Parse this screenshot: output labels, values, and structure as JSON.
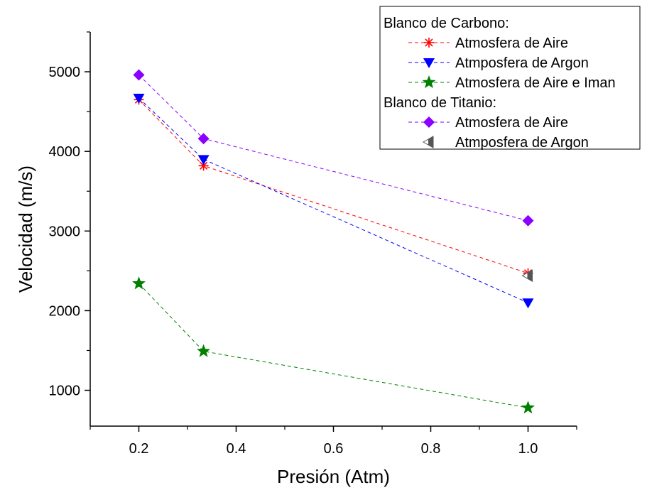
{
  "chart_data": {
    "type": "line",
    "xlabel": "Presión (Atm)",
    "ylabel": "Velocidad (m/s)",
    "xlim": [
      0.1,
      1.1
    ],
    "ylim": [
      550,
      5500
    ],
    "x_ticks": [
      "0.2",
      "0.4",
      "0.6",
      "0.8",
      "1.0"
    ],
    "y_ticks": [
      "1000",
      "2000",
      "3000",
      "4000",
      "5000"
    ],
    "x_tick_values": [
      0.2,
      0.4,
      0.6,
      0.8,
      1.0
    ],
    "y_tick_values": [
      1000,
      2000,
      3000,
      4000,
      5000
    ],
    "grid": false,
    "legend_position": "top-right",
    "legend_groups": [
      {
        "title": "Blanco de Carbono:",
        "series": [
          {
            "name": "Atmosfera de Aire",
            "color": "#ff0000",
            "marker": "asterisk",
            "x": [
              0.2,
              0.333,
              1.0
            ],
            "y": [
              4650,
              3820,
              2470
            ]
          },
          {
            "name": "Atmposfera de Argon",
            "color": "#0000ff",
            "marker": "triangle-down",
            "x": [
              0.2,
              0.333,
              1.0
            ],
            "y": [
              4670,
              3900,
              2100
            ]
          },
          {
            "name": "Atmosfera de Aire e Iman",
            "color": "#008000",
            "marker": "star",
            "x": [
              0.2,
              0.333,
              1.0
            ],
            "y": [
              2340,
              1490,
              780
            ]
          }
        ]
      },
      {
        "title": "Blanco de Titanio:",
        "series": [
          {
            "name": "Atmosfera de Aire",
            "color": "#8b00ff",
            "marker": "diamond",
            "x": [
              0.2,
              0.333,
              1.0
            ],
            "y": [
              4960,
              4160,
              3130
            ]
          },
          {
            "name": "Atmposfera de Argon",
            "color": "#555555",
            "marker": "triangle-left",
            "x": [
              1.0
            ],
            "y": [
              2440
            ]
          }
        ]
      }
    ]
  }
}
